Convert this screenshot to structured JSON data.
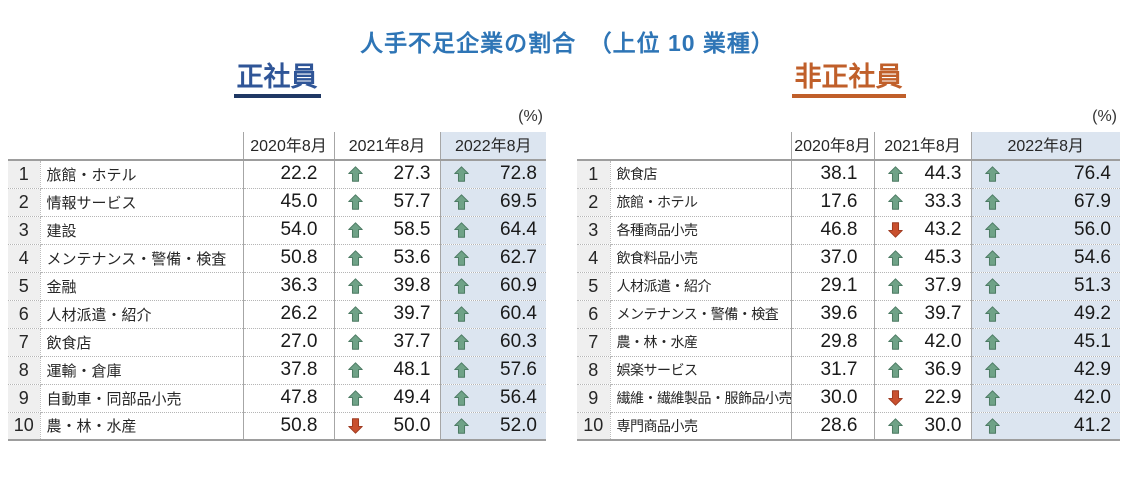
{
  "title": "人手不足企業の割合　（上位 10 業種）",
  "colors": {
    "title_blue": "#2E75B6",
    "regular_heading_blue": "#2F5597",
    "regular_underline_navy": "#1F3864",
    "nonregular_heading_orange": "#C05F2A",
    "arrow_up_green": "#6FA287",
    "arrow_up_border": "#4A7861",
    "arrow_down_red": "#C9502E",
    "arrow_down_border": "#9C3A20",
    "highlight_column_blue": "#DCE5F0",
    "rank_column_gray": "#EFEFEF"
  },
  "chart_data": [
    {
      "type": "table",
      "title": "正社員",
      "unit": "(%)",
      "columns": [
        "2020年8月",
        "2021年8月",
        "2022年8月"
      ],
      "rows": [
        {
          "rank": "1",
          "industry": "旅館・ホテル",
          "v2020": "22.2",
          "trend2021": "up",
          "v2021": "27.3",
          "trend2022": "up",
          "v2022": "72.8"
        },
        {
          "rank": "2",
          "industry": "情報サービス",
          "v2020": "45.0",
          "trend2021": "up",
          "v2021": "57.7",
          "trend2022": "up",
          "v2022": "69.5"
        },
        {
          "rank": "3",
          "industry": "建設",
          "v2020": "54.0",
          "trend2021": "up",
          "v2021": "58.5",
          "trend2022": "up",
          "v2022": "64.4"
        },
        {
          "rank": "4",
          "industry": "メンテナンス・警備・検査",
          "v2020": "50.8",
          "trend2021": "up",
          "v2021": "53.6",
          "trend2022": "up",
          "v2022": "62.7"
        },
        {
          "rank": "5",
          "industry": "金融",
          "v2020": "36.3",
          "trend2021": "up",
          "v2021": "39.8",
          "trend2022": "up",
          "v2022": "60.9"
        },
        {
          "rank": "6",
          "industry": "人材派遣・紹介",
          "v2020": "26.2",
          "trend2021": "up",
          "v2021": "39.7",
          "trend2022": "up",
          "v2022": "60.4"
        },
        {
          "rank": "7",
          "industry": "飲食店",
          "v2020": "27.0",
          "trend2021": "up",
          "v2021": "37.7",
          "trend2022": "up",
          "v2022": "60.3"
        },
        {
          "rank": "8",
          "industry": "運輸・倉庫",
          "v2020": "37.8",
          "trend2021": "up",
          "v2021": "48.1",
          "trend2022": "up",
          "v2022": "57.6"
        },
        {
          "rank": "9",
          "industry": "自動車・同部品小売",
          "v2020": "47.8",
          "trend2021": "up",
          "v2021": "49.4",
          "trend2022": "up",
          "v2022": "56.4"
        },
        {
          "rank": "10",
          "industry": "農・林・水産",
          "v2020": "50.8",
          "trend2021": "down",
          "v2021": "50.0",
          "trend2022": "up",
          "v2022": "52.0"
        }
      ]
    },
    {
      "type": "table",
      "title": "非正社員",
      "unit": "(%)",
      "columns": [
        "2020年8月",
        "2021年8月",
        "2022年8月"
      ],
      "rows": [
        {
          "rank": "1",
          "industry": "飲食店",
          "v2020": "38.1",
          "trend2021": "up",
          "v2021": "44.3",
          "trend2022": "up",
          "v2022": "76.4"
        },
        {
          "rank": "2",
          "industry": "旅館・ホテル",
          "v2020": "17.6",
          "trend2021": "up",
          "v2021": "33.3",
          "trend2022": "up",
          "v2022": "67.9"
        },
        {
          "rank": "3",
          "industry": "各種商品小売",
          "v2020": "46.8",
          "trend2021": "down",
          "v2021": "43.2",
          "trend2022": "up",
          "v2022": "56.0"
        },
        {
          "rank": "4",
          "industry": "飲食料品小売",
          "v2020": "37.0",
          "trend2021": "up",
          "v2021": "45.3",
          "trend2022": "up",
          "v2022": "54.6"
        },
        {
          "rank": "5",
          "industry": "人材派遣・紹介",
          "v2020": "29.1",
          "trend2021": "up",
          "v2021": "37.9",
          "trend2022": "up",
          "v2022": "51.3"
        },
        {
          "rank": "6",
          "industry": "メンテナンス・警備・検査",
          "v2020": "39.6",
          "trend2021": "up",
          "v2021": "39.7",
          "trend2022": "up",
          "v2022": "49.2"
        },
        {
          "rank": "7",
          "industry": "農・林・水産",
          "v2020": "29.8",
          "trend2021": "up",
          "v2021": "42.0",
          "trend2022": "up",
          "v2022": "45.1"
        },
        {
          "rank": "8",
          "industry": "娯楽サービス",
          "v2020": "31.7",
          "trend2021": "up",
          "v2021": "36.9",
          "trend2022": "up",
          "v2022": "42.9"
        },
        {
          "rank": "9",
          "industry": "繊維・繊維製品・服飾品小売",
          "v2020": "30.0",
          "trend2021": "down",
          "v2021": "22.9",
          "trend2022": "up",
          "v2022": "42.0"
        },
        {
          "rank": "10",
          "industry": "専門商品小売",
          "v2020": "28.6",
          "trend2021": "up",
          "v2021": "30.0",
          "trend2022": "up",
          "v2022": "41.2"
        }
      ]
    }
  ]
}
